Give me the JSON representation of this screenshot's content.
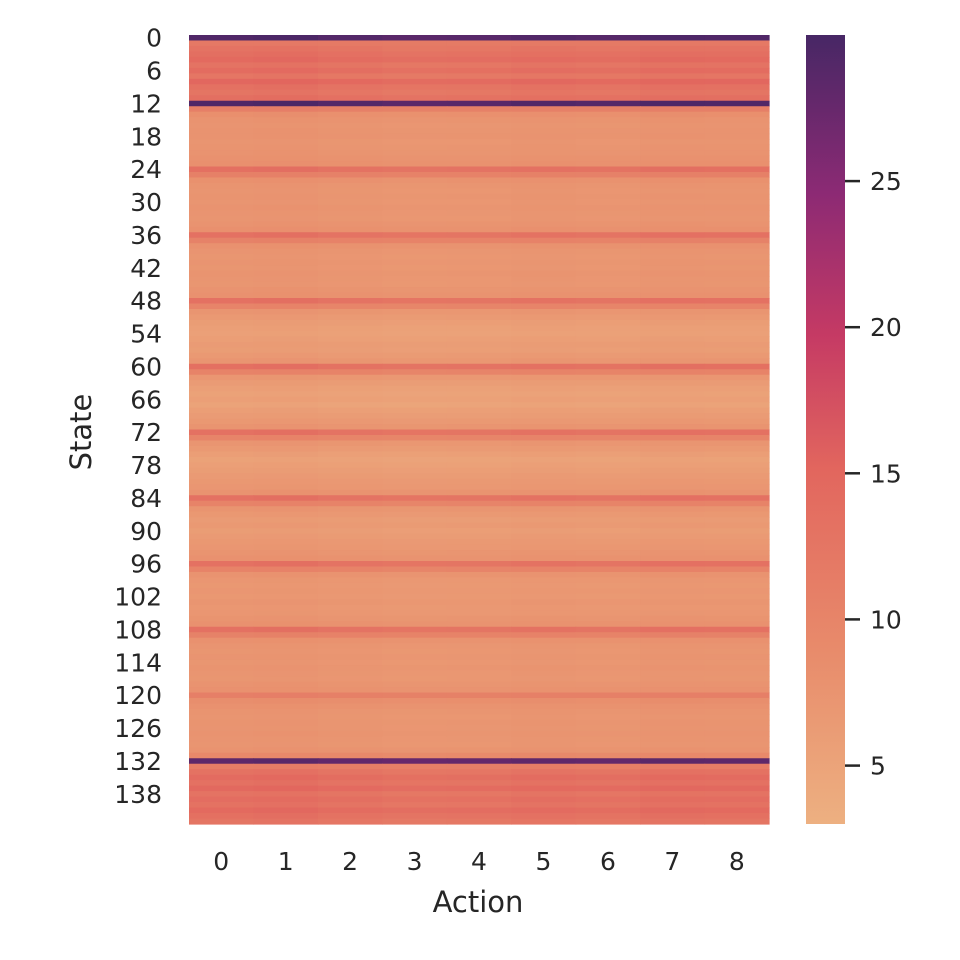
{
  "chart_data": {
    "type": "heatmap",
    "title": "",
    "xlabel": "Action",
    "ylabel": "State",
    "x_categories": [
      0,
      1,
      2,
      3,
      4,
      5,
      6,
      7,
      8
    ],
    "n_rows": 144,
    "y_tick_labels": [
      0,
      6,
      12,
      18,
      24,
      30,
      36,
      42,
      48,
      54,
      60,
      66,
      72,
      78,
      84,
      90,
      96,
      102,
      108,
      114,
      120,
      126,
      132,
      138
    ],
    "row_values": [
      29,
      11.8,
      12.6,
      13.4,
      14.2,
      12.6,
      13.8,
      12.2,
      14.6,
      13.0,
      12.4,
      13.4,
      29,
      10.8,
      8.2,
      7.6,
      7.3,
      7.5,
      7.6,
      7.2,
      7.4,
      7.5,
      7.8,
      8.0,
      13.2,
      10.6,
      7.9,
      7.4,
      7.2,
      7.4,
      7.2,
      7.5,
      7.3,
      7.2,
      7.6,
      8.0,
      13.0,
      10.4,
      7.8,
      7.3,
      7.1,
      7.3,
      7.1,
      7.4,
      7.2,
      7.1,
      7.5,
      7.8,
      13.0,
      10.0,
      7.2,
      6.6,
      6.0,
      5.6,
      5.4,
      5.8,
      6.2,
      6.0,
      6.6,
      7.2,
      13.2,
      10.2,
      7.0,
      6.2,
      5.6,
      5.2,
      5.6,
      5.0,
      5.8,
      6.2,
      6.8,
      7.4,
      13.0,
      10.0,
      7.2,
      6.6,
      5.8,
      5.2,
      5.6,
      6.0,
      6.4,
      6.8,
      7.0,
      7.6,
      13.0,
      10.2,
      7.4,
      6.8,
      6.2,
      6.6,
      6.0,
      6.4,
      6.8,
      7.0,
      7.4,
      7.8,
      13.0,
      10.2,
      7.6,
      7.0,
      6.8,
      7.0,
      6.8,
      7.2,
      6.9,
      7.0,
      7.4,
      7.8,
      13.0,
      10.4,
      7.8,
      7.3,
      7.1,
      7.3,
      7.1,
      7.4,
      7.2,
      7.1,
      7.5,
      7.8,
      10.8,
      8.4,
      7.8,
      7.4,
      7.2,
      7.4,
      7.3,
      7.5,
      7.3,
      7.2,
      7.6,
      9.2,
      28,
      11.2,
      12.8,
      14.0,
      13.0,
      14.4,
      12.6,
      13.6,
      12.8,
      14.2,
      13.2,
      12.4
    ],
    "column_offsets": [
      0.2,
      0.4,
      0.0,
      -0.3,
      -0.2,
      0.1,
      -0.1,
      0.3,
      0.2
    ],
    "colorbar": {
      "min": 3,
      "max": 30,
      "ticks": [
        5,
        10,
        15,
        20,
        25
      ],
      "colormap": "flare"
    },
    "colors": {
      "low": "#edb081",
      "mid_low": "#e88b6b",
      "mid": "#e2665e",
      "mid_high": "#c53a64",
      "high": "#8c2a74",
      "max": "#472765"
    }
  }
}
